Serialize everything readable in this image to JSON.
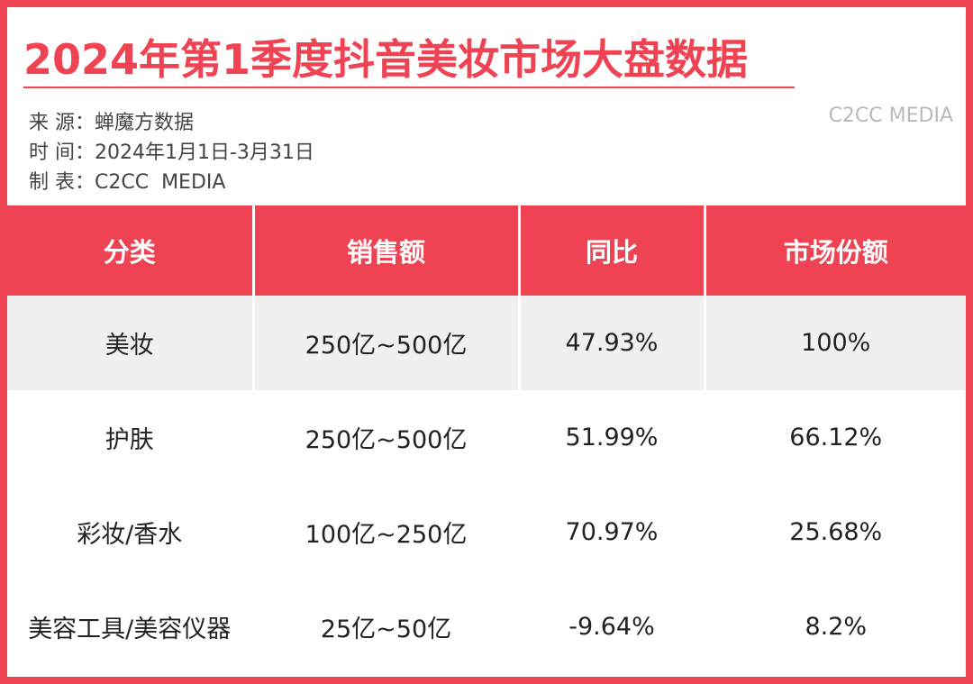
{
  "title": "2024年第1季度抖音美妆市场大盘数据",
  "meta": {
    "source_key": "来 源：",
    "source_value": "蝉魔方数据",
    "time_key": "时 间：",
    "time_value": "2024年1月1日-3月31日",
    "maker_key": "制 表：",
    "maker_value": "C2CC  MEDIA"
  },
  "watermark": "C2CC MEDIA",
  "table": {
    "headers": [
      "分类",
      "销售额",
      "同比",
      "市场份额"
    ],
    "rows": [
      [
        "美妆",
        "250亿~500亿",
        "47.93%",
        "100%"
      ],
      [
        "护肤",
        "250亿~500亿",
        "51.99%",
        "66.12%"
      ],
      [
        "彩妆/香水",
        "100亿~250亿",
        "70.97%",
        "25.68%"
      ],
      [
        "美容工具/美容仪器",
        "25亿~50亿",
        "-9.64%",
        "8.2%"
      ]
    ]
  },
  "colors": {
    "accent": "#ef4252",
    "shade_row": "#f0f0f0",
    "watermark": "#b9b9b9"
  }
}
